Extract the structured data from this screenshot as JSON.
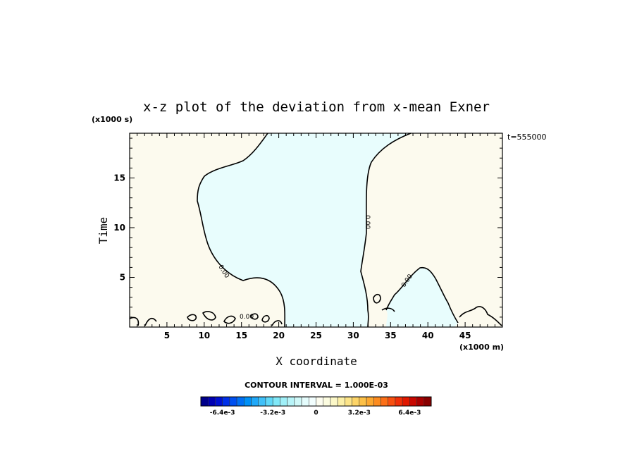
{
  "chart_data": {
    "type": "contour",
    "title": "x-z plot of the deviation from x-mean Exner",
    "xlabel": "X coordinate",
    "ylabel": "Time",
    "x_unit": "(x1000 m)",
    "y_unit": "(x1000 s)",
    "time_stamp": "t=555000",
    "xlim": [
      0,
      50
    ],
    "ylim": [
      0,
      19.5
    ],
    "xticks": [
      "5",
      "10",
      "15",
      "20",
      "25",
      "30",
      "35",
      "40",
      "45"
    ],
    "yticks": [
      "5",
      "10",
      "15"
    ],
    "contour_interval_text": "CONTOUR INTERVAL = 1.000E-03",
    "contour_level_labels": [
      "0.00",
      "0.00",
      "0.00",
      "0.00"
    ],
    "regions": [
      {
        "sign": "positive",
        "x_range": [
          0,
          18
        ]
      },
      {
        "sign": "negative",
        "x_range": [
          10,
          31
        ]
      },
      {
        "sign": "positive",
        "x_range": [
          31,
          50
        ]
      }
    ],
    "colorbar": {
      "tick_labels": [
        "-6.4e-3",
        "-3.2e-3",
        "0",
        "3.2e-3",
        "6.4e-3"
      ],
      "colors": [
        "#00008b",
        "#0000b3",
        "#0010d0",
        "#0030e8",
        "#0050f0",
        "#0070f4",
        "#0090f6",
        "#20a8f8",
        "#40c0f8",
        "#60d8f8",
        "#80e8f8",
        "#a0f0f8",
        "#b8f4f8",
        "#d0f8f8",
        "#e4fcfc",
        "#f2fefe",
        "#fdfdf0",
        "#fcfce0",
        "#fcf8c8",
        "#fcf0a8",
        "#fce488",
        "#fcd468",
        "#fcc048",
        "#fca830",
        "#fc8c20",
        "#fc7018",
        "#f85010",
        "#f03008",
        "#e01800",
        "#c80800",
        "#a80000",
        "#880000"
      ]
    },
    "fill_colors": {
      "positive": "#fcfaee",
      "negative": "#e8fdfd"
    }
  }
}
